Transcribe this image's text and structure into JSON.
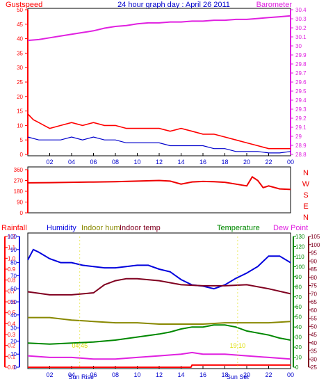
{
  "header": {
    "gust_label": "Gustspeed",
    "title": "24 hour graph day : April 26 2011",
    "baro_label": "Barometer"
  },
  "colors": {
    "gust": "#ff0000",
    "wind": "#0000cc",
    "baro": "#e020e0",
    "title": "#0000cc",
    "dir": "#ee0000",
    "rain": "#ff0000",
    "humidity": "#0000dd",
    "indoor_hum": "#888800",
    "indoor_temp": "#800020",
    "temperature": "#008800",
    "dew": "#e020e0",
    "sun_label": "#dddd00",
    "frame": "#000000"
  },
  "time_ticks": [
    "02",
    "04",
    "06",
    "08",
    "10",
    "12",
    "14",
    "16",
    "18",
    "20",
    "22",
    "00"
  ],
  "bottom_time_ticks": [
    "02",
    "04",
    "06",
    "08",
    "10",
    "12",
    "14",
    "16",
    "18",
    "20",
    "22",
    "00"
  ],
  "sun": {
    "rise_label": "Sun Rise",
    "set_label": "Sun Set",
    "rise_time": "04:45",
    "set_time": "19:10",
    "rise_text": "04:45",
    "set_text": "19:10"
  },
  "chart_data": [
    {
      "type": "line",
      "title": "24 hour graph day : April 26 2011",
      "x_unit": "hours",
      "xlim": [
        0,
        24
      ],
      "left_axis": {
        "label": "Gustspeed",
        "ticks": [
          "0",
          "5",
          "10",
          "15",
          "20",
          "25",
          "30",
          "35",
          "40",
          "45",
          "50"
        ],
        "ylim": [
          0,
          50
        ]
      },
      "right_axis": {
        "label": "Barometer",
        "ticks": [
          "28.8",
          "28.9",
          "29",
          "29.1",
          "29.2",
          "29.3",
          "29.4",
          "29.5",
          "29.6",
          "29.7",
          "29.8",
          "29.9",
          "30",
          "30.1",
          "30.2",
          "30.3",
          "30.4"
        ],
        "ylim": [
          28.75,
          30.4
        ]
      },
      "series": [
        {
          "name": "Gustspeed",
          "axis": "left",
          "x": [
            0,
            0.5,
            1,
            1.5,
            2,
            3,
            4,
            5,
            6,
            7,
            8,
            9,
            10,
            11,
            12,
            13,
            14,
            15,
            16,
            17,
            18,
            19,
            20,
            21,
            22,
            23,
            24
          ],
          "values": [
            14,
            12,
            11,
            10,
            9,
            10,
            11,
            10,
            11,
            10,
            10,
            9,
            9,
            9,
            9,
            8,
            9,
            8,
            7,
            7,
            6,
            5,
            4,
            3,
            2,
            2,
            2
          ]
        },
        {
          "axis": "left",
          "x": [
            0,
            1,
            2,
            3,
            4,
            5,
            6,
            7,
            8,
            9,
            10,
            11,
            12,
            13,
            14,
            15,
            16,
            17,
            18,
            19,
            20,
            21,
            22,
            23,
            24
          ],
          "values": [
            6,
            5,
            5,
            5,
            6,
            5,
            6,
            5,
            5,
            4,
            4,
            4,
            4,
            3,
            3,
            3,
            3,
            2,
            2,
            1,
            1,
            1,
            0.5,
            0.5,
            1
          ]
        },
        {
          "name": "Barometer",
          "axis": "right",
          "x": [
            0,
            1,
            2,
            3,
            4,
            5,
            6,
            7,
            8,
            9,
            10,
            11,
            12,
            13,
            14,
            15,
            16,
            17,
            18,
            19,
            20,
            21,
            22,
            23,
            24
          ],
          "values": [
            30.05,
            30.06,
            30.08,
            30.1,
            30.12,
            30.14,
            30.16,
            30.19,
            30.21,
            30.22,
            30.24,
            30.25,
            30.25,
            30.26,
            30.26,
            30.27,
            30.27,
            30.28,
            30.28,
            30.29,
            30.29,
            30.3,
            30.31,
            30.32,
            30.33
          ]
        }
      ]
    },
    {
      "type": "line",
      "x_unit": "hours",
      "xlim": [
        0,
        24
      ],
      "y_axis": {
        "ticks": [
          "0",
          "90",
          "180",
          "270",
          "360"
        ],
        "ylim": [
          0,
          360
        ]
      },
      "direction_labels": [
        "N",
        "W",
        "S",
        "E",
        "N"
      ],
      "series": [
        {
          "axis": "left",
          "x": [
            0,
            2,
            4,
            6,
            8,
            10,
            12,
            13,
            14,
            15,
            16,
            17,
            18,
            19,
            20,
            20.5,
            21,
            21.5,
            22,
            23,
            24
          ],
          "values": [
            250,
            252,
            255,
            257,
            260,
            265,
            270,
            265,
            240,
            258,
            262,
            260,
            255,
            240,
            225,
            300,
            270,
            210,
            225,
            200,
            195
          ]
        }
      ]
    },
    {
      "type": "line",
      "x_unit": "hours",
      "xlim": [
        0,
        24
      ],
      "axes": {
        "rainfall": {
          "label": "Rainfall",
          "ticks": [
            "0.0",
            "0.1",
            "0.2",
            "0.3",
            "0.4",
            "0.5",
            "0.6",
            "0.7",
            "0.8",
            "0.9",
            "1.0",
            "1.1",
            "1.2"
          ],
          "ylim": [
            0,
            1.2
          ]
        },
        "humidity": {
          "label": "Humidity",
          "ticks": [
            "0",
            "10",
            "20",
            "30",
            "40",
            "50",
            "60",
            "70",
            "80",
            "90",
            "100"
          ],
          "ylim": [
            0,
            100
          ]
        },
        "temperature": {
          "label": "Temperature",
          "ticks": [
            "0",
            "10",
            "20",
            "30",
            "40",
            "50",
            "60",
            "70",
            "80",
            "90",
            "100",
            "110",
            "120",
            "130"
          ],
          "ylim": [
            0,
            130
          ]
        },
        "dew_point": {
          "label": "Dew Point",
          "ticks": [
            "25",
            "30",
            "35",
            "40",
            "45",
            "50",
            "55",
            "60",
            "65",
            "70",
            "75",
            "80",
            "85",
            "90",
            "95",
            "100",
            "105"
          ],
          "ylim": [
            25,
            105
          ]
        }
      },
      "legend": [
        "Rainfall",
        "Humidity",
        "Indoor hum",
        "Indoor temp",
        "Temperature",
        "Dew Point"
      ],
      "series": [
        {
          "name": "Rainfall",
          "axis": "rainfall",
          "x": [
            0,
            4,
            8,
            12,
            14.9,
            15,
            18,
            20,
            24
          ],
          "values": [
            0,
            0,
            0,
            0,
            0,
            0.02,
            0.02,
            0.02,
            0.02
          ]
        },
        {
          "name": "Humidity",
          "axis": "humidity",
          "x": [
            0,
            0.5,
            1,
            2,
            3,
            4,
            5,
            6,
            7,
            8,
            9,
            10,
            11,
            12,
            13,
            14,
            15,
            16,
            17,
            18,
            19,
            20,
            21,
            22,
            23,
            24
          ],
          "values": [
            82,
            90,
            88,
            83,
            80,
            80,
            78,
            77,
            76,
            76,
            77,
            78,
            78,
            75,
            73,
            67,
            63,
            62,
            60,
            63,
            68,
            72,
            77,
            85,
            85,
            80
          ]
        },
        {
          "name": "Indoor hum",
          "axis": "humidity",
          "x": [
            0,
            2,
            4,
            6,
            8,
            10,
            12,
            14,
            16,
            18,
            20,
            22,
            24
          ],
          "values": [
            38,
            38,
            36,
            35,
            34,
            34,
            33,
            33,
            33,
            34,
            34,
            34,
            35
          ]
        },
        {
          "name": "Indoor temp",
          "axis": "temperature",
          "x": [
            0,
            2,
            4,
            6,
            7,
            8,
            9,
            10,
            12,
            14,
            16,
            18,
            20,
            22,
            24
          ],
          "values": [
            75,
            72,
            72,
            74,
            82,
            86,
            88,
            88,
            86,
            82,
            81,
            81,
            82,
            78,
            73
          ]
        },
        {
          "name": "Temperature",
          "axis": "temperature",
          "x": [
            0,
            2,
            4,
            6,
            8,
            10,
            12,
            13,
            14,
            15,
            16,
            17,
            18,
            19,
            20,
            21,
            22,
            23,
            24
          ],
          "values": [
            24,
            23,
            24,
            25,
            27,
            30,
            33,
            35,
            38,
            40,
            40,
            42,
            42,
            40,
            36,
            34,
            32,
            29,
            27
          ]
        },
        {
          "name": "Dew Point",
          "axis": "dew_point",
          "x": [
            0,
            2,
            4,
            6,
            8,
            10,
            12,
            14,
            15,
            16,
            18,
            20,
            22,
            24
          ],
          "values": [
            32,
            31,
            31,
            30,
            30,
            31,
            32,
            33,
            34,
            33,
            33,
            32,
            31,
            30
          ]
        }
      ]
    }
  ]
}
